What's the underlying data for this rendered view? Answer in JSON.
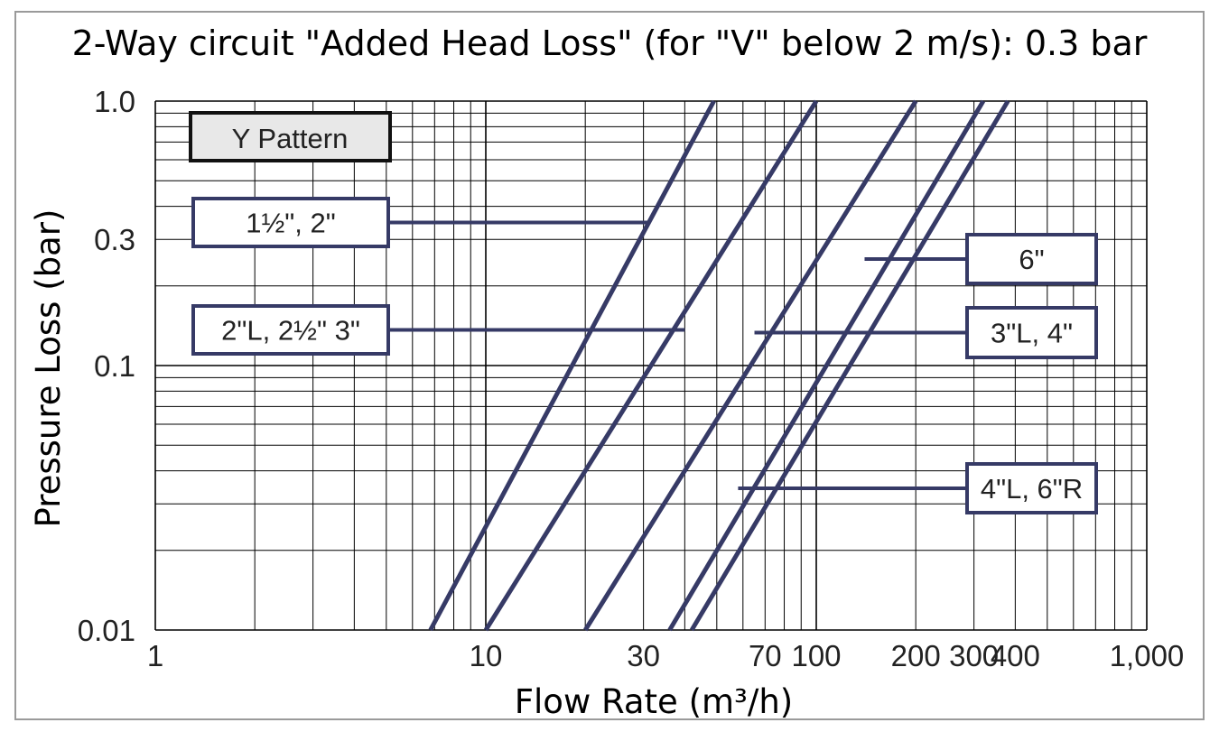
{
  "chart_data": {
    "type": "line",
    "title": "2-Way circuit \"Added Head Loss\" (for \"V\" below 2 m/s): 0.3 bar",
    "xlabel": "Flow Rate (m³/h)",
    "ylabel": "Pressure Loss (bar)",
    "xscale": "log",
    "yscale": "log",
    "xlim": [
      1,
      1000
    ],
    "ylim": [
      0.01,
      1.0
    ],
    "grid": true,
    "x_ticks": [
      {
        "value": 1,
        "label": "1"
      },
      {
        "value": 10,
        "label": "10"
      },
      {
        "value": 30,
        "label": "30"
      },
      {
        "value": 70,
        "label": "70"
      },
      {
        "value": 100,
        "label": "100"
      },
      {
        "value": 200,
        "label": "200"
      },
      {
        "value": 300,
        "label": "300"
      },
      {
        "value": 400,
        "label": "400"
      },
      {
        "value": 1000,
        "label": "1,000"
      }
    ],
    "y_ticks": [
      {
        "value": 1.0,
        "label": "1.0"
      },
      {
        "value": 0.3,
        "label": "0.3"
      },
      {
        "value": 0.1,
        "label": "0.1"
      },
      {
        "value": 0.01,
        "label": "0.01"
      }
    ],
    "legend_box": "Y Pattern",
    "series": [
      {
        "name": "1½\", 2\"",
        "points": [
          [
            6.8,
            0.01
          ],
          [
            49,
            1.0
          ]
        ],
        "label_at": [
          31,
          0.3
        ],
        "label_side": "left"
      },
      {
        "name": "2\"L, 2½\" 3\"",
        "points": [
          [
            10,
            0.01
          ],
          [
            100,
            1.0
          ]
        ],
        "label_at": [
          40,
          0.12
        ],
        "label_side": "left"
      },
      {
        "name": "3\"L, 4\"",
        "points": [
          [
            20,
            0.01
          ],
          [
            200,
            1.0
          ]
        ],
        "label_at": [
          65,
          0.12
        ],
        "label_side": "right"
      },
      {
        "name": "4\"L, 6\"R",
        "points": [
          [
            36,
            0.01
          ],
          [
            320,
            1.0
          ]
        ],
        "label_at": [
          58,
          0.032
        ],
        "label_side": "right"
      },
      {
        "name": "6\"",
        "points": [
          [
            42,
            0.01
          ],
          [
            380,
            1.0
          ]
        ],
        "label_at": [
          140,
          0.27
        ],
        "label_side": "right"
      }
    ],
    "colors": {
      "series_line": "#363a66",
      "label_border": "#363a66",
      "legend_border": "#111111",
      "legend_fill": "#e8e8e8",
      "grid": "#000000"
    }
  }
}
